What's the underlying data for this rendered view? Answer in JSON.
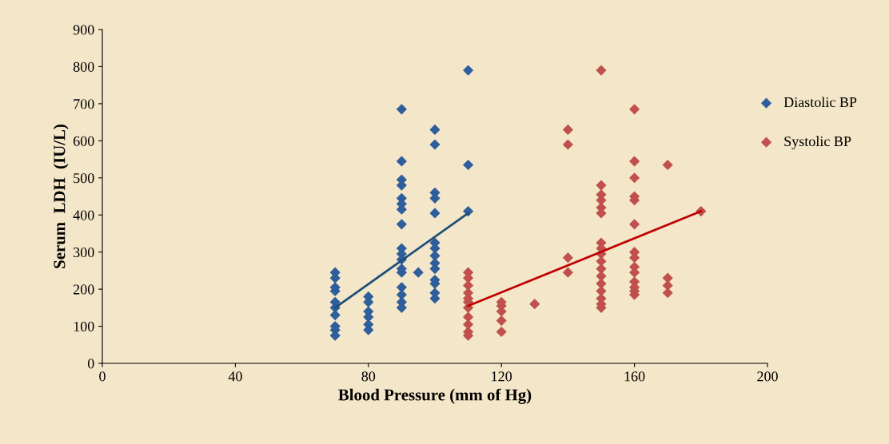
{
  "chart_data": {
    "type": "scatter",
    "xlabel": "Blood Pressure (mm of Hg)",
    "ylabel": "Serum  LDH  (IU/L)",
    "xlim": [
      0,
      200
    ],
    "xticks": [
      0,
      40,
      80,
      120,
      160,
      200
    ],
    "ylim": [
      0,
      900
    ],
    "yticks": [
      0,
      100,
      200,
      300,
      400,
      500,
      600,
      700,
      800,
      900
    ],
    "grid": false,
    "legend": "right",
    "marker": "diamond",
    "series": [
      {
        "name": "Diastolic BP",
        "color": "#2e5e9c",
        "x": [
          70,
          70,
          70,
          70,
          70,
          70,
          70,
          70,
          70,
          70,
          80,
          80,
          80,
          80,
          80,
          80,
          90,
          90,
          90,
          90,
          90,
          90,
          90,
          90,
          90,
          90,
          90,
          90,
          90,
          90,
          90,
          90,
          90,
          95,
          100,
          100,
          100,
          100,
          100,
          100,
          100,
          100,
          100,
          100,
          100,
          100,
          100,
          100,
          110,
          110,
          110
        ],
        "values": [
          245,
          230,
          205,
          195,
          165,
          150,
          130,
          100,
          90,
          75,
          180,
          165,
          140,
          125,
          105,
          90,
          685,
          545,
          495,
          480,
          445,
          430,
          415,
          375,
          310,
          295,
          280,
          255,
          245,
          205,
          185,
          165,
          150,
          245,
          630,
          590,
          460,
          445,
          405,
          325,
          310,
          290,
          270,
          255,
          225,
          215,
          190,
          175,
          790,
          535,
          410
        ]
      },
      {
        "name": "Systolic BP",
        "color": "#c0504d",
        "x": [
          110,
          110,
          110,
          110,
          110,
          110,
          110,
          110,
          110,
          110,
          110,
          120,
          120,
          120,
          120,
          120,
          130,
          140,
          140,
          140,
          140,
          150,
          150,
          150,
          150,
          150,
          150,
          150,
          150,
          150,
          150,
          150,
          150,
          150,
          150,
          150,
          150,
          150,
          160,
          160,
          160,
          160,
          160,
          160,
          160,
          160,
          160,
          160,
          160,
          160,
          160,
          160,
          170,
          170,
          170,
          170,
          180
        ],
        "values": [
          245,
          230,
          210,
          190,
          175,
          165,
          150,
          125,
          105,
          85,
          75,
          165,
          155,
          140,
          115,
          85,
          160,
          630,
          590,
          285,
          245,
          790,
          480,
          455,
          440,
          420,
          405,
          325,
          310,
          295,
          275,
          255,
          235,
          215,
          195,
          175,
          160,
          150,
          685,
          545,
          500,
          450,
          440,
          375,
          300,
          285,
          260,
          245,
          220,
          205,
          195,
          185,
          535,
          230,
          210,
          190,
          410
        ]
      },
      {
        "type": "line",
        "color": "#1f4e79",
        "marker": "none",
        "x": [
          70,
          110
        ],
        "values": [
          150,
          405
        ]
      },
      {
        "type": "line",
        "color": "#c00000",
        "marker": "none",
        "x": [
          110,
          180
        ],
        "values": [
          155,
          410
        ]
      }
    ]
  }
}
